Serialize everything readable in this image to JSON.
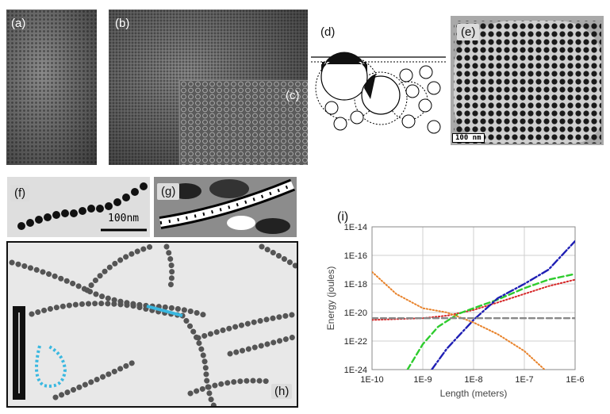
{
  "panels": {
    "a": "(a)",
    "b": "(b)",
    "c": "(c)",
    "d": "(d)",
    "e": "(e)",
    "f": "(f)",
    "g": "(g)",
    "h": "(h)",
    "i": "(i)"
  },
  "scale_e": "100 nm",
  "scale_f": "100nm",
  "colors": {
    "dotted_red": "#d62728",
    "dashed_green": "#2ecc2e",
    "dashdot_blue": "#1f1fb4",
    "dotted_orange": "#e8822a",
    "dashed_gray": "#888888",
    "chain_highlight": "#3ab8e0"
  },
  "chart_data": {
    "type": "line",
    "xlabel": "Length (meters)",
    "ylabel": "Energy (joules)",
    "x_scale": "log",
    "y_scale": "log",
    "xlim": [
      1e-10,
      1e-06
    ],
    "ylim": [
      1e-24,
      1e-14
    ],
    "x_ticks": [
      "1E-10",
      "1E-9",
      "1E-8",
      "1E-7",
      "1E-6"
    ],
    "y_ticks": [
      "1E-14",
      "1E-16",
      "1E-18",
      "1E-20",
      "1E-22",
      "1E-24"
    ],
    "grid": true,
    "series": [
      {
        "style": "dotted",
        "color": "#d62728",
        "x": [
          1e-10,
          1e-09,
          3e-09,
          1e-08,
          3e-08,
          1e-07,
          3e-07,
          1e-06
        ],
        "y": [
          3e-21,
          4e-21,
          6e-21,
          1.5e-20,
          5e-20,
          2e-19,
          7e-19,
          2e-18
        ]
      },
      {
        "style": "dashed",
        "color": "#2ecc2e",
        "x": [
          5e-10,
          1e-09,
          2e-09,
          5e-09,
          1e-08,
          3e-08,
          1e-07,
          3e-07,
          1e-06
        ],
        "y": [
          1e-24,
          6e-23,
          1e-21,
          8e-21,
          2e-20,
          8e-20,
          5e-19,
          2e-18,
          5e-18
        ]
      },
      {
        "style": "dashdot",
        "color": "#1f1fb4",
        "x": [
          1.5e-09,
          3e-09,
          1e-08,
          3e-08,
          1e-07,
          3e-07,
          1e-06
        ],
        "y": [
          1e-24,
          3e-23,
          3e-21,
          1e-19,
          1e-18,
          1e-17,
          1e-15
        ]
      },
      {
        "style": "dotted",
        "color": "#e8822a",
        "x": [
          1e-10,
          3e-10,
          1e-09,
          3e-09,
          1e-08,
          3e-08,
          1e-07,
          2.5e-07
        ],
        "y": [
          7e-18,
          2e-19,
          2e-20,
          1e-20,
          2e-21,
          3e-22,
          2e-23,
          1e-24
        ]
      },
      {
        "style": "dashed",
        "color": "#888888",
        "x": [
          1e-10,
          1e-06
        ],
        "y": [
          4e-21,
          4e-21
        ]
      }
    ]
  }
}
